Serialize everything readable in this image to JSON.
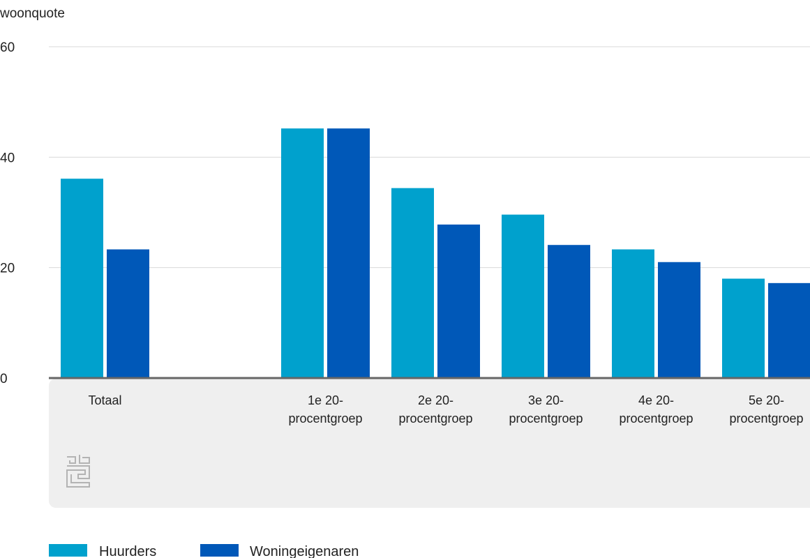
{
  "chart_data": {
    "type": "bar",
    "ylabel": "woonquote",
    "ylim": [
      0,
      60
    ],
    "yticks": [
      0,
      20,
      40,
      60
    ],
    "grid": true,
    "legend_position": "bottom-left",
    "categories": [
      [
        "Totaal"
      ],
      [],
      [
        "1e 20-",
        "procentgroep"
      ],
      [
        "2e 20-",
        "procentgroep"
      ],
      [
        "3e 20-",
        "procentgroep"
      ],
      [
        "4e 20-",
        "procentgroep"
      ],
      [
        "5e 20-",
        "procentgroep"
      ]
    ],
    "series": [
      {
        "name": "Huurders",
        "color": "#00a1cd",
        "values": [
          36.1,
          null,
          45.2,
          34.4,
          29.6,
          23.3,
          18.0
        ]
      },
      {
        "name": "Woningeigenaren",
        "color": "#0058b8",
        "values": [
          23.3,
          null,
          45.2,
          27.8,
          24.1,
          21.0,
          17.2
        ]
      }
    ]
  },
  "logo": {
    "name": "cbs-logo-icon",
    "text": "cbs"
  },
  "colors": {
    "panel": "#efefef",
    "grid": "#d9d9d9",
    "axis": "#666666"
  }
}
